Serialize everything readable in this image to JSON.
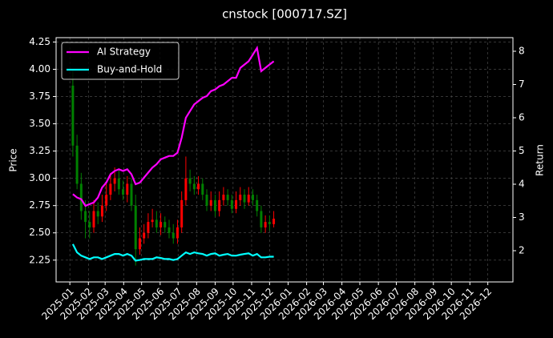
{
  "chart_data": {
    "type": "candlestick",
    "title": "cnstock [000717.SZ]",
    "y_label": "Price",
    "y2_label": "Return",
    "x": [
      "2025-01-06",
      "2025-01-13",
      "2025-01-20",
      "2025-01-27",
      "2025-02-03",
      "2025-02-10",
      "2025-02-17",
      "2025-02-24",
      "2025-03-03",
      "2025-03-10",
      "2025-03-17",
      "2025-03-24",
      "2025-03-31",
      "2025-04-07",
      "2025-04-14",
      "2025-04-21",
      "2025-04-28",
      "2025-05-05",
      "2025-05-12",
      "2025-05-19",
      "2025-05-26",
      "2025-06-02",
      "2025-06-09",
      "2025-06-16",
      "2025-06-23",
      "2025-06-30",
      "2025-07-07",
      "2025-07-14",
      "2025-07-21",
      "2025-07-28",
      "2025-08-04",
      "2025-08-11",
      "2025-08-18",
      "2025-08-25",
      "2025-09-01",
      "2025-09-08",
      "2025-09-15",
      "2025-09-22",
      "2025-09-29",
      "2025-10-06",
      "2025-10-13",
      "2025-10-20",
      "2025-10-27",
      "2025-11-03",
      "2025-11-10",
      "2025-11-17",
      "2025-11-24",
      "2025-12-01",
      "2025-12-08"
    ],
    "open": [
      3.85,
      3.3,
      2.95,
      2.7,
      2.6,
      2.55,
      2.7,
      2.65,
      2.75,
      2.85,
      2.95,
      3.0,
      2.9,
      2.85,
      2.95,
      2.75,
      2.35,
      2.45,
      2.5,
      2.6,
      2.62,
      2.55,
      2.6,
      2.55,
      2.5,
      2.45,
      2.55,
      2.8,
      3.0,
      2.95,
      2.9,
      2.95,
      2.85,
      2.75,
      2.8,
      2.7,
      2.8,
      2.85,
      2.8,
      2.72,
      2.8,
      2.85,
      2.78,
      2.85,
      2.8,
      2.7,
      2.55,
      2.6,
      2.58
    ],
    "high": [
      4.0,
      3.4,
      3.05,
      2.8,
      2.7,
      2.8,
      2.78,
      2.85,
      2.95,
      3.05,
      3.1,
      3.08,
      2.98,
      3.02,
      3.0,
      2.85,
      2.55,
      2.58,
      2.68,
      2.72,
      2.7,
      2.68,
      2.65,
      2.62,
      2.58,
      2.62,
      2.88,
      3.2,
      3.08,
      3.02,
      3.02,
      3.0,
      2.9,
      2.88,
      2.85,
      2.88,
      2.92,
      2.9,
      2.85,
      2.88,
      2.92,
      2.9,
      2.92,
      2.9,
      2.85,
      2.75,
      2.66,
      2.66,
      2.7
    ],
    "low": [
      3.2,
      2.9,
      2.62,
      2.45,
      2.45,
      2.5,
      2.58,
      2.6,
      2.7,
      2.8,
      2.88,
      2.85,
      2.8,
      2.78,
      2.7,
      2.2,
      2.3,
      2.4,
      2.45,
      2.55,
      2.5,
      2.48,
      2.5,
      2.45,
      2.4,
      2.4,
      2.5,
      2.75,
      2.88,
      2.85,
      2.85,
      2.8,
      2.7,
      2.7,
      2.65,
      2.65,
      2.75,
      2.75,
      2.68,
      2.68,
      2.75,
      2.72,
      2.75,
      2.75,
      2.65,
      2.5,
      2.5,
      2.52,
      2.55
    ],
    "close": [
      3.3,
      2.95,
      2.7,
      2.6,
      2.55,
      2.7,
      2.65,
      2.75,
      2.85,
      2.95,
      3.0,
      2.9,
      2.85,
      2.95,
      2.75,
      2.35,
      2.45,
      2.5,
      2.6,
      2.62,
      2.55,
      2.6,
      2.55,
      2.5,
      2.45,
      2.55,
      2.8,
      3.0,
      2.95,
      2.9,
      2.95,
      2.85,
      2.75,
      2.8,
      2.7,
      2.8,
      2.85,
      2.8,
      2.72,
      2.8,
      2.85,
      2.78,
      2.85,
      2.8,
      2.7,
      2.55,
      2.6,
      2.58,
      2.63
    ],
    "up_color": "#ff0000",
    "down_color": "#008000",
    "series": [
      {
        "name": "AI Strategy",
        "color": "#ff00ff",
        "axis": "y2",
        "values": [
          3.7,
          3.6,
          3.55,
          3.35,
          3.4,
          3.45,
          3.6,
          3.9,
          4.05,
          4.3,
          4.4,
          4.45,
          4.4,
          4.45,
          4.3,
          4.0,
          4.05,
          4.2,
          4.35,
          4.5,
          4.6,
          4.75,
          4.8,
          4.85,
          4.85,
          4.95,
          5.4,
          6.0,
          6.2,
          6.4,
          6.5,
          6.6,
          6.65,
          6.8,
          6.85,
          6.95,
          7.0,
          7.1,
          7.2,
          7.2,
          7.5,
          7.6,
          7.7,
          7.9,
          8.1,
          7.4,
          7.5,
          7.6,
          7.7
        ]
      },
      {
        "name": "Buy-and-Hold",
        "color": "#00ffff",
        "axis": "y2",
        "values": [
          2.2,
          1.95,
          1.85,
          1.8,
          1.75,
          1.8,
          1.8,
          1.75,
          1.8,
          1.85,
          1.9,
          1.9,
          1.85,
          1.9,
          1.85,
          1.7,
          1.72,
          1.75,
          1.75,
          1.75,
          1.8,
          1.78,
          1.75,
          1.75,
          1.72,
          1.75,
          1.85,
          1.95,
          1.9,
          1.95,
          1.92,
          1.9,
          1.85,
          1.9,
          1.92,
          1.85,
          1.88,
          1.9,
          1.85,
          1.85,
          1.88,
          1.9,
          1.92,
          1.85,
          1.9,
          1.8,
          1.8,
          1.82,
          1.82
        ]
      }
    ],
    "xlim": [
      "2024-12-09",
      "2027-01-12"
    ],
    "xticks": [
      "2025-01",
      "2025-02",
      "2025-03",
      "2025-04",
      "2025-05",
      "2025-06",
      "2025-07",
      "2025-08",
      "2025-09",
      "2025-10",
      "2025-11",
      "2025-12",
      "2026-01",
      "2026-02",
      "2026-03",
      "2026-04",
      "2026-05",
      "2026-06",
      "2026-07",
      "2026-08",
      "2026-09",
      "2026-10",
      "2026-11",
      "2026-12"
    ],
    "ylim": [
      2.05,
      4.29
    ],
    "yticks": [
      2.25,
      {
        "value": 2.5,
        "label": "2.50"
      },
      2.75,
      {
        "value": 3.0,
        "label": "3.00"
      },
      3.25,
      {
        "value": 3.5,
        "label": "3.50"
      },
      3.75,
      {
        "value": 4.0,
        "label": "4.00"
      },
      4.25
    ],
    "y2lim": [
      1.06,
      8.41
    ],
    "y2ticks": [
      2,
      3,
      4,
      5,
      6,
      7,
      8
    ],
    "grid": true,
    "legend": "upper left"
  }
}
